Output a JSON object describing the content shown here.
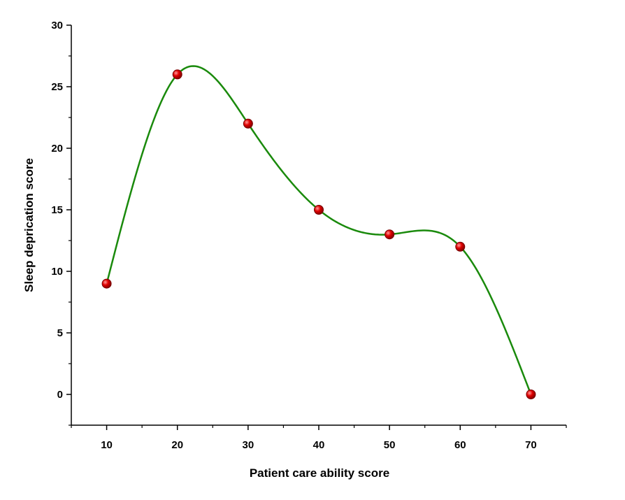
{
  "chart_data": {
    "type": "line",
    "title": "",
    "xlabel": "Patient care ability score",
    "ylabel": "Sleep deprication score",
    "x": [
      10,
      20,
      30,
      40,
      50,
      60,
      70
    ],
    "series": [
      {
        "values": [
          9,
          26,
          22,
          15,
          13,
          12,
          0
        ]
      }
    ],
    "xlim": [
      5,
      75
    ],
    "ylim": [
      -2.5,
      30
    ],
    "xticks": [
      10,
      20,
      30,
      40,
      50,
      60,
      70
    ],
    "yticks": [
      0,
      5,
      10,
      15,
      20,
      25,
      30
    ],
    "xtick_labels": [
      "10",
      "20",
      "30",
      "40",
      "50",
      "60",
      "70"
    ],
    "ytick_labels": [
      "0",
      "5",
      "10",
      "15",
      "20",
      "25",
      "30"
    ],
    "smooth": true,
    "grid": false,
    "legend": "none",
    "colors": {
      "line": "#1a8a0c",
      "marker": "#d60000",
      "marker_dark": "#7a0000",
      "axis": "#000000"
    }
  }
}
